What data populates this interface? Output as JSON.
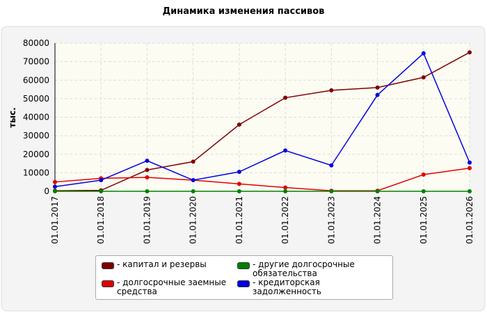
{
  "chart_data": {
    "type": "line",
    "title": "Динамика изменения пассивов",
    "y_label": "тыс.",
    "categories": [
      "01.01.2017",
      "01.01.2018",
      "01.01.2019",
      "01.01.2020",
      "01.01.2021",
      "01.01.2022",
      "01.01.2023",
      "01.01.2024",
      "01.01.2025",
      "01.01.2026"
    ],
    "series": [
      {
        "name": "- капитал и резервы",
        "color": "#7f0000",
        "values": [
          300,
          500,
          11500,
          16000,
          36000,
          50500,
          54500,
          56000,
          61500,
          75000
        ]
      },
      {
        "name": "- долгосрочные заемные средства",
        "color": "#e00000",
        "values": [
          5000,
          7000,
          7500,
          6000,
          4000,
          2000,
          300,
          300,
          9000,
          12500
        ]
      },
      {
        "name": "- другие долгосрочные обязательства",
        "color": "#008000",
        "values": [
          0,
          0,
          0,
          0,
          0,
          0,
          0,
          0,
          0,
          0
        ]
      },
      {
        "name": "- кредиторская задолженность",
        "color": "#0000e0",
        "values": [
          2500,
          6000,
          16500,
          6000,
          10500,
          22000,
          14000,
          52000,
          74500,
          15500
        ]
      }
    ],
    "ylim": [
      0,
      80000
    ],
    "yticks": [
      0,
      10000,
      20000,
      30000,
      40000,
      50000,
      60000,
      70000,
      80000
    ],
    "grid": true
  }
}
